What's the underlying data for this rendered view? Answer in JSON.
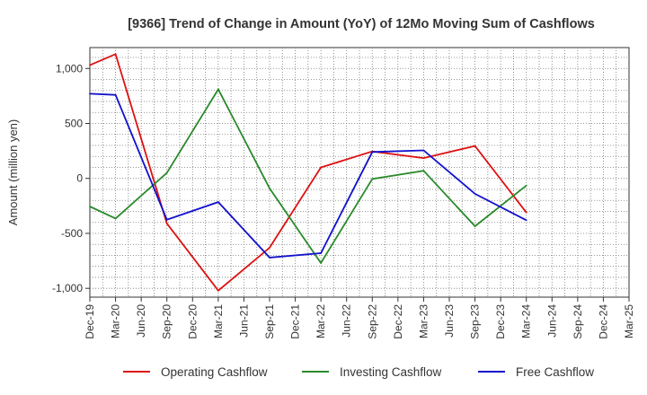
{
  "chart_data": {
    "type": "line",
    "title": "[9366]  Trend of Change in Amount (YoY) of 12Mo Moving Sum of Cashflows",
    "xlabel": "",
    "ylabel": "Amount (million yen)",
    "categories": [
      "Dec-19",
      "Mar-20",
      "Jun-20",
      "Sep-20",
      "Dec-20",
      "Mar-21",
      "Jun-21",
      "Sep-21",
      "Dec-21",
      "Mar-22",
      "Jun-22",
      "Sep-22",
      "Dec-22",
      "Mar-23",
      "Jun-23",
      "Sep-23",
      "Dec-23",
      "Mar-24",
      "Jun-24",
      "Sep-24",
      "Dec-24",
      "Mar-25"
    ],
    "ylim": [
      -1080,
      1190
    ],
    "yticks": [
      -1000,
      -500,
      0,
      500,
      1000
    ],
    "ytick_labels": [
      "-1,000",
      "-500",
      "0",
      "500",
      "1,000"
    ],
    "grid": true,
    "legend_position": "bottom",
    "series": [
      {
        "name": "Operating Cashflow",
        "color": "#dd1111",
        "points": [
          [
            "Dec-19",
            1030
          ],
          [
            "Mar-20",
            1130
          ],
          [
            "Sep-20",
            -410
          ],
          [
            "Mar-21",
            -1020
          ],
          [
            "Sep-21",
            -630
          ],
          [
            "Mar-22",
            100
          ],
          [
            "Sep-22",
            245
          ],
          [
            "Mar-23",
            185
          ],
          [
            "Sep-23",
            295
          ],
          [
            "Mar-24",
            -310
          ]
        ]
      },
      {
        "name": "Investing Cashflow",
        "color": "#2a8a2a",
        "points": [
          [
            "Dec-19",
            -255
          ],
          [
            "Mar-20",
            -365
          ],
          [
            "Sep-20",
            50
          ],
          [
            "Mar-21",
            810
          ],
          [
            "Sep-21",
            -90
          ],
          [
            "Mar-22",
            -770
          ],
          [
            "Sep-22",
            -5
          ],
          [
            "Mar-23",
            70
          ],
          [
            "Sep-23",
            -435
          ],
          [
            "Mar-24",
            -65
          ]
        ]
      },
      {
        "name": "Free Cashflow",
        "color": "#1111cc",
        "points": [
          [
            "Dec-19",
            770
          ],
          [
            "Mar-20",
            760
          ],
          [
            "Sep-20",
            -375
          ],
          [
            "Mar-21",
            -215
          ],
          [
            "Sep-21",
            -720
          ],
          [
            "Mar-22",
            -680
          ],
          [
            "Sep-22",
            240
          ],
          [
            "Mar-23",
            255
          ],
          [
            "Sep-23",
            -140
          ],
          [
            "Mar-24",
            -380
          ]
        ]
      }
    ]
  }
}
